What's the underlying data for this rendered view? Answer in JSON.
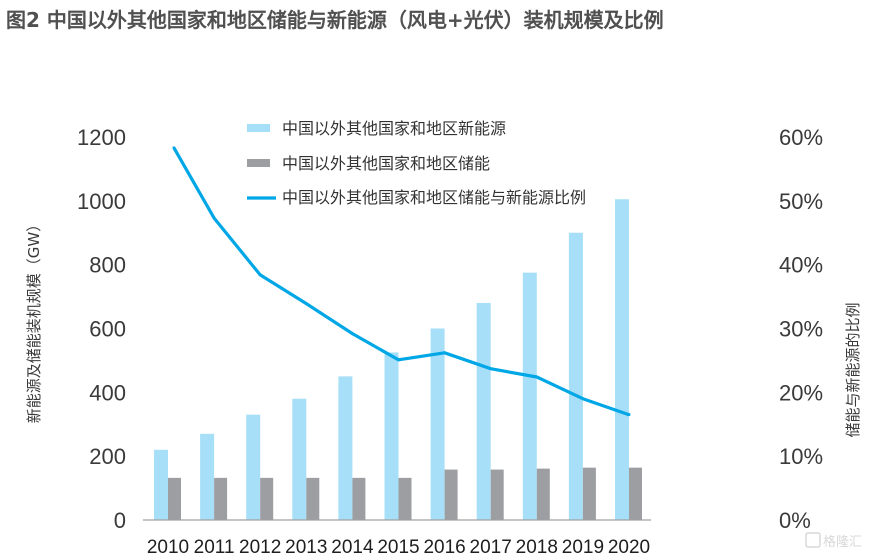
{
  "title": "图2 中国以外其他国家和地区储能与新能源（风电+光伏）装机规模及比例",
  "watermark": "格隆汇",
  "colors": {
    "new_energy": "#a8dff8",
    "storage": "#9d9ea2",
    "ratio_line": "#00a7e6",
    "axis": "#a0a0a0"
  },
  "chart_data": {
    "type": "bar+line",
    "title": "图2 中国以外其他国家和地区储能与新能源（风电+光伏）装机规模及比例",
    "categories": [
      "2010",
      "2011",
      "2012",
      "2013",
      "2014",
      "2015",
      "2016",
      "2017",
      "2018",
      "2019",
      "2020"
    ],
    "series": [
      {
        "name": "中国以外其他国家和地区新能源",
        "type": "bar",
        "axis": "left",
        "values": [
          220,
          270,
          330,
          380,
          450,
          525,
          600,
          680,
          775,
          900,
          1005
        ]
      },
      {
        "name": "中国以外其他国家和地区储能",
        "type": "bar",
        "axis": "left",
        "values": [
          132,
          132,
          132,
          132,
          132,
          132,
          158,
          158,
          161,
          164,
          164
        ]
      },
      {
        "name": "中国以外其他国家和地区储能与新能源比例",
        "type": "line",
        "axis": "right",
        "values": [
          58.3,
          47.3,
          38.4,
          33.9,
          29.2,
          25.1,
          26.2,
          23.7,
          22.4,
          19.0,
          16.5
        ]
      }
    ],
    "ylabel_left": "新能源及储能装机规模（GW）",
    "ylabel_right": "储能与新能源的比例",
    "ylim_left": [
      0,
      1200
    ],
    "ylim_right": [
      0,
      60
    ],
    "yticks_left": [
      "0",
      "200",
      "400",
      "600",
      "800",
      "1000",
      "1200"
    ],
    "yticks_right": [
      "0%",
      "10%",
      "20%",
      "30%",
      "40%",
      "50%",
      "60%"
    ],
    "grid": false,
    "legend_position": "top-center"
  }
}
